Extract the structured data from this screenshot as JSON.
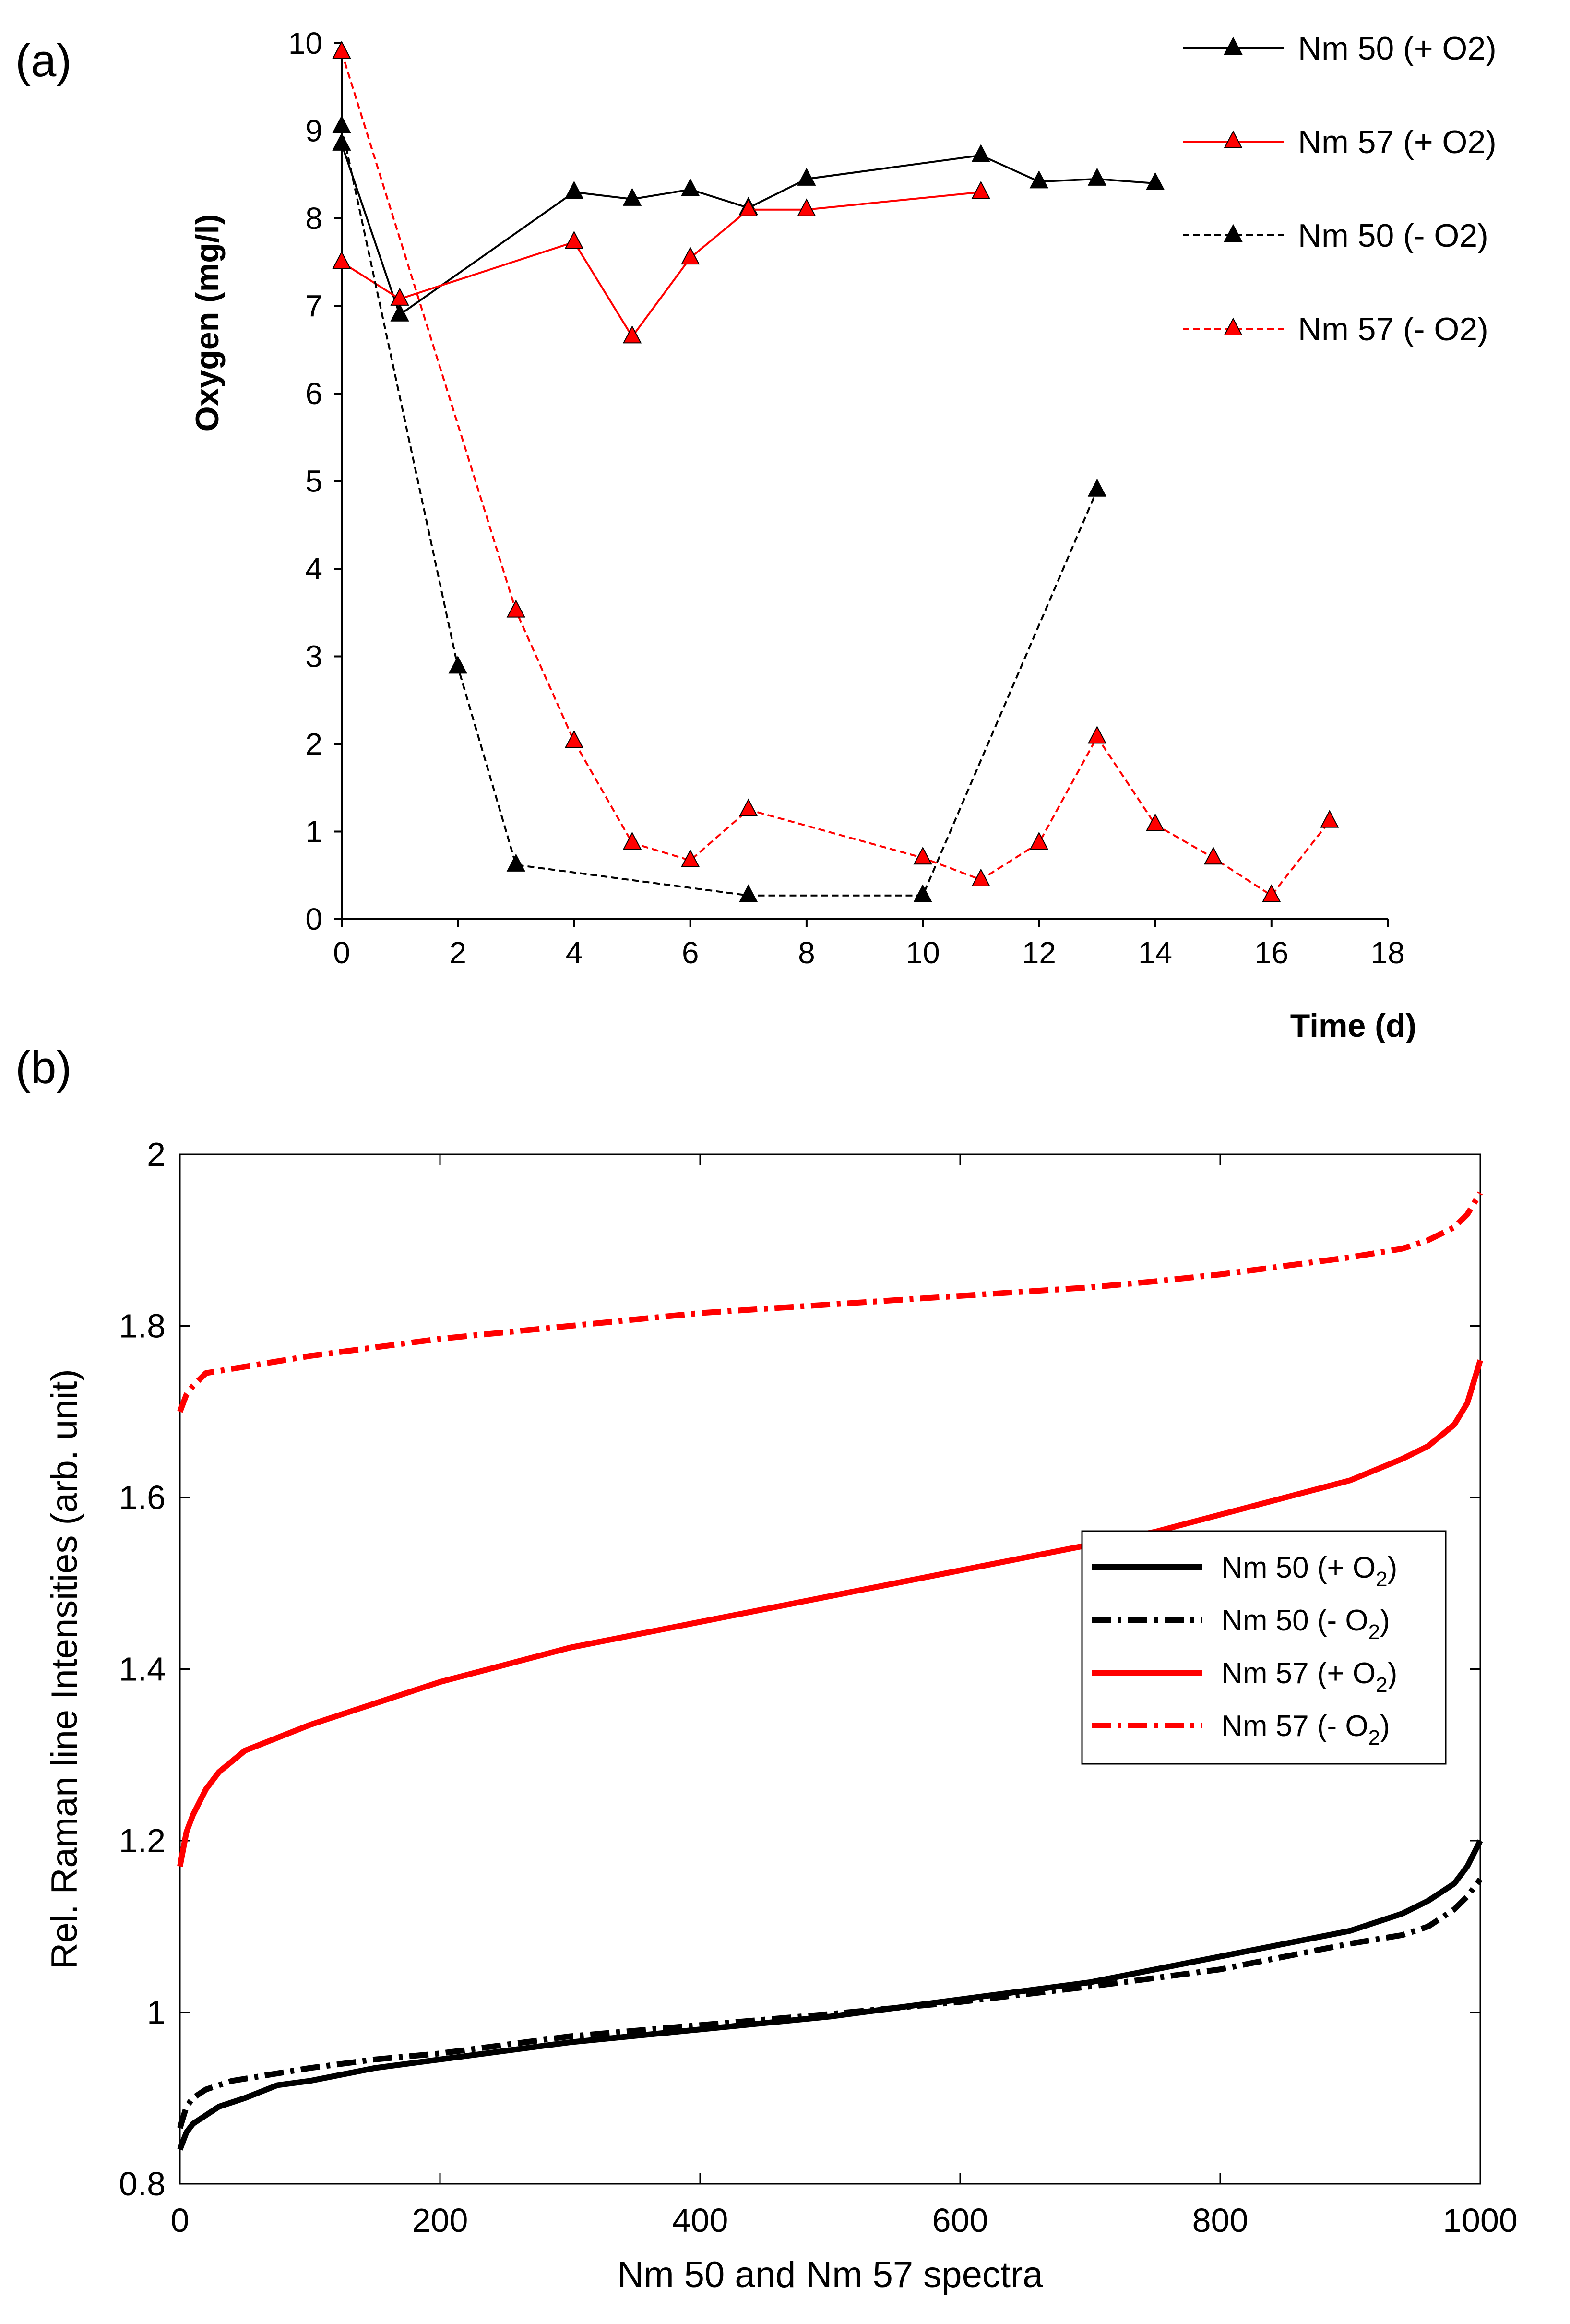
{
  "panels": {
    "a_label": "(a)",
    "b_label": "(b)"
  },
  "chart_data": [
    {
      "type": "line",
      "title": "",
      "xlabel": "Time (d)",
      "ylabel": "Oxygen (mg/l)",
      "xlim": [
        0,
        18
      ],
      "ylim": [
        0,
        10
      ],
      "xticks": [
        0,
        2,
        4,
        6,
        8,
        10,
        12,
        14,
        16,
        18
      ],
      "yticks": [
        0,
        1,
        2,
        3,
        4,
        5,
        6,
        7,
        8,
        9,
        10
      ],
      "grid": false,
      "legend_position": "top-right",
      "series": [
        {
          "name": "Nm 50 (+ O2)",
          "color": "#000000",
          "dash": "solid",
          "marker": "triangle",
          "x": [
            0,
            1,
            4,
            5,
            6,
            7,
            8,
            11,
            12,
            13,
            14
          ],
          "y": [
            8.85,
            6.9,
            8.3,
            8.22,
            8.33,
            8.12,
            8.45,
            8.72,
            8.42,
            8.45,
            8.4
          ]
        },
        {
          "name": "Nm 57 (+ O2)",
          "color": "#ff0000",
          "dash": "solid",
          "marker": "triangle",
          "x": [
            0,
            1,
            4,
            5,
            6,
            7,
            8,
            11
          ],
          "y": [
            7.5,
            7.08,
            7.73,
            6.65,
            7.55,
            8.1,
            8.1,
            8.3
          ]
        },
        {
          "name": "Nm 50 (- O2)",
          "color": "#000000",
          "dash": "dashed",
          "marker": "triangle",
          "x": [
            0,
            2,
            3,
            7,
            10,
            13
          ],
          "y": [
            9.05,
            2.88,
            0.62,
            0.27,
            0.27,
            4.9
          ]
        },
        {
          "name": "Nm 57 (- O2)",
          "color": "#ff0000",
          "dash": "dashed",
          "marker": "triangle",
          "x": [
            0,
            3,
            4,
            5,
            6,
            7,
            10,
            11,
            12,
            13,
            14,
            15,
            16,
            17
          ],
          "y": [
            9.9,
            3.52,
            2.03,
            0.87,
            0.67,
            1.25,
            0.7,
            0.45,
            0.87,
            2.08,
            1.08,
            0.7,
            0.27,
            1.12
          ]
        }
      ]
    },
    {
      "type": "line",
      "title": "",
      "xlabel": "Nm 50 and Nm 57 spectra",
      "ylabel": "Rel. Raman line Intensities (arb. unit)",
      "xlim": [
        0,
        1000
      ],
      "ylim": [
        0.8,
        2
      ],
      "xticks": [
        0,
        200,
        400,
        600,
        800,
        1000
      ],
      "yticks": [
        0.8,
        1,
        1.2,
        1.4,
        1.6,
        1.8,
        2
      ],
      "ytick_labels": [
        "0.8",
        "1",
        "1.2",
        "1.4",
        "1.6",
        "1.8",
        "2"
      ],
      "grid": false,
      "legend_position": "right",
      "series": [
        {
          "name": "Nm 50 (+ O",
          "subscript": "2",
          "name_suffix": ")",
          "color": "#000000",
          "dash": "solid",
          "x": [
            0,
            5,
            10,
            20,
            30,
            50,
            75,
            100,
            150,
            200,
            300,
            400,
            500,
            600,
            700,
            800,
            850,
            900,
            940,
            960,
            980,
            990,
            1000
          ],
          "y": [
            0.84,
            0.86,
            0.87,
            0.88,
            0.89,
            0.9,
            0.915,
            0.92,
            0.935,
            0.945,
            0.965,
            0.98,
            0.995,
            1.015,
            1.035,
            1.065,
            1.08,
            1.095,
            1.115,
            1.13,
            1.15,
            1.17,
            1.2
          ]
        },
        {
          "name": "Nm 50 (- O",
          "subscript": "2",
          "name_suffix": ")",
          "color": "#000000",
          "dash": "dashdot",
          "x": [
            0,
            5,
            10,
            20,
            40,
            60,
            100,
            150,
            200,
            300,
            400,
            500,
            600,
            700,
            800,
            850,
            900,
            940,
            960,
            980,
            990,
            1000
          ],
          "y": [
            0.865,
            0.89,
            0.9,
            0.91,
            0.92,
            0.925,
            0.935,
            0.945,
            0.952,
            0.972,
            0.985,
            0.998,
            1.012,
            1.03,
            1.05,
            1.065,
            1.08,
            1.09,
            1.1,
            1.12,
            1.135,
            1.155
          ]
        },
        {
          "name": "Nm 57 (+ O",
          "subscript": "2",
          "name_suffix": ")",
          "color": "#ff0000",
          "dash": "solid",
          "x": [
            0,
            5,
            10,
            20,
            30,
            50,
            75,
            100,
            150,
            200,
            300,
            400,
            500,
            600,
            700,
            750,
            800,
            850,
            900,
            940,
            960,
            980,
            990,
            1000
          ],
          "y": [
            1.17,
            1.21,
            1.23,
            1.26,
            1.28,
            1.305,
            1.32,
            1.335,
            1.36,
            1.385,
            1.425,
            1.455,
            1.485,
            1.515,
            1.545,
            1.56,
            1.58,
            1.6,
            1.62,
            1.645,
            1.66,
            1.685,
            1.71,
            1.76
          ]
        },
        {
          "name": "Nm 57 (- O",
          "subscript": "2",
          "name_suffix": ")",
          "color": "#ff0000",
          "dash": "dashdot",
          "x": [
            0,
            5,
            10,
            20,
            40,
            60,
            100,
            150,
            200,
            300,
            400,
            500,
            600,
            700,
            750,
            800,
            850,
            900,
            940,
            960,
            980,
            990,
            1000
          ],
          "y": [
            1.7,
            1.72,
            1.73,
            1.745,
            1.75,
            1.755,
            1.765,
            1.775,
            1.785,
            1.8,
            1.815,
            1.825,
            1.835,
            1.845,
            1.852,
            1.86,
            1.87,
            1.88,
            1.89,
            1.9,
            1.915,
            1.93,
            1.955
          ]
        }
      ]
    }
  ]
}
